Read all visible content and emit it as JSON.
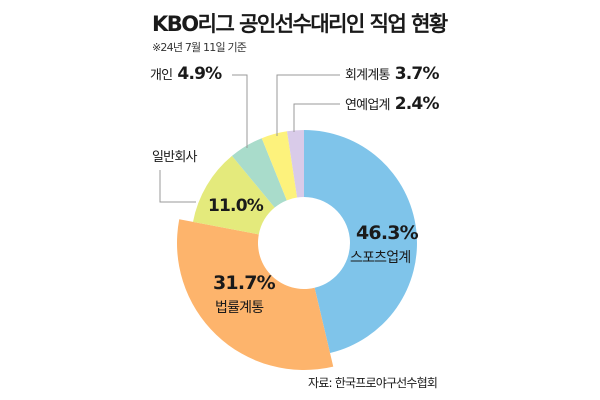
{
  "chart_data": {
    "type": "pie",
    "variant": "donut",
    "title": "KBO리그 공인선수대리인 직업 현황",
    "subtitle": "※24년 7월 11일 기준",
    "source": "자료: 한국프로야구선수협회",
    "slices": [
      {
        "label": "스포츠업계",
        "value": 46.3,
        "display": "46.3%",
        "color": "#7fc4ea"
      },
      {
        "label": "법률계통",
        "value": 31.7,
        "display": "31.7%",
        "color": "#fdb46c",
        "exploded": true
      },
      {
        "label": "일반회사",
        "value": 11.0,
        "display": "11.0%",
        "color": "#e4ea7c"
      },
      {
        "label": "개인",
        "value": 4.9,
        "display": "4.9%",
        "color": "#a9dccb"
      },
      {
        "label": "회계계통",
        "value": 3.7,
        "display": "3.7%",
        "color": "#fdf27c"
      },
      {
        "label": "연예업계",
        "value": 2.4,
        "display": "2.4%",
        "color": "#d9cbe9"
      }
    ]
  }
}
